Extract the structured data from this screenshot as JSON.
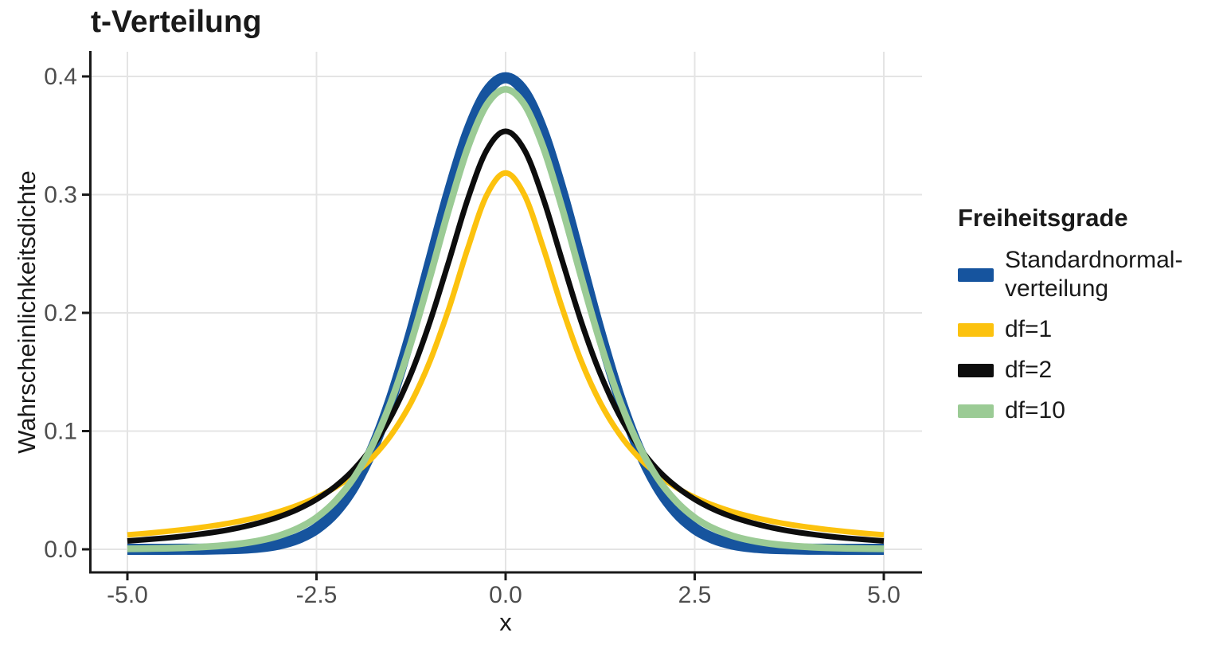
{
  "colors": {
    "background": "#ffffff",
    "gridline": "#e4e4e4",
    "axis_line": "#1a1a1a",
    "tick_label": "#4d4d4d",
    "axis_title": "#1a1a1a",
    "standardnormal_blue": "#16549e",
    "df1_yellow": "#fcc20e",
    "df2_black": "#0d0d0d",
    "df10_green": "#9bcb95"
  },
  "chart_data": {
    "type": "line",
    "title": "t-Verteilung",
    "xlabel": "x",
    "ylabel": "Wahrscheinlichkeitsdichte",
    "legend_title": "Freiheitsgrade",
    "legend_position": "right",
    "grid": true,
    "xlim": [
      -5,
      5
    ],
    "ylim": [
      0,
      0.4
    ],
    "x_ticks": {
      "values": [
        -5,
        -2.5,
        0,
        2.5,
        5
      ],
      "labels": [
        "-5.0",
        "-2.5",
        "0.0",
        "2.5",
        "5.0"
      ]
    },
    "y_ticks": {
      "values": [
        0,
        0.1,
        0.2,
        0.3,
        0.4
      ],
      "labels": [
        "0.0",
        "0.1",
        "0.2",
        "0.3",
        "0.4"
      ]
    },
    "x": [
      -5,
      -4.75,
      -4.5,
      -4.25,
      -4,
      -3.75,
      -3.5,
      -3.25,
      -3,
      -2.75,
      -2.5,
      -2.25,
      -2,
      -1.75,
      -1.5,
      -1.25,
      -1,
      -0.75,
      -0.5,
      -0.25,
      0,
      0.25,
      0.5,
      0.75,
      1,
      1.25,
      1.5,
      1.75,
      2,
      2.25,
      2.5,
      2.75,
      3,
      3.25,
      3.5,
      3.75,
      4,
      4.25,
      4.5,
      4.75,
      5
    ],
    "series": [
      {
        "name": "Standardnormalverteilung",
        "label_lines": [
          "Standardnormal-",
          "verteilung"
        ],
        "color": "#16549e",
        "line_width": 14,
        "peak": 0.3989,
        "values": [
          0.0,
          0.0,
          0.0,
          0.0001,
          0.0001,
          0.0004,
          0.0009,
          0.002,
          0.0044,
          0.0091,
          0.0175,
          0.0317,
          0.054,
          0.0863,
          0.1295,
          0.1826,
          0.242,
          0.3011,
          0.3521,
          0.3867,
          0.3989,
          0.3867,
          0.3521,
          0.3011,
          0.242,
          0.1826,
          0.1295,
          0.0863,
          0.054,
          0.0317,
          0.0175,
          0.0091,
          0.0044,
          0.002,
          0.0009,
          0.0004,
          0.0001,
          0.0001,
          0.0,
          0.0,
          0.0
        ]
      },
      {
        "name": "df=1",
        "label_lines": [
          "df=1"
        ],
        "color": "#fcc20e",
        "line_width": 7,
        "peak": 0.3183,
        "values": [
          0.0122,
          0.0135,
          0.015,
          0.0167,
          0.0187,
          0.0211,
          0.024,
          0.0275,
          0.0318,
          0.0372,
          0.0439,
          0.0525,
          0.0637,
          0.0784,
          0.0979,
          0.1242,
          0.1592,
          0.2037,
          0.2546,
          0.2996,
          0.3183,
          0.2996,
          0.2546,
          0.2037,
          0.1592,
          0.1242,
          0.0979,
          0.0784,
          0.0637,
          0.0525,
          0.0439,
          0.0372,
          0.0318,
          0.0275,
          0.024,
          0.0211,
          0.0187,
          0.0167,
          0.015,
          0.0135,
          0.0122
        ]
      },
      {
        "name": "df=2",
        "label_lines": [
          "df=2"
        ],
        "color": "#0d0d0d",
        "line_width": 7,
        "peak": 0.3536,
        "values": [
          0.0071,
          0.0082,
          0.0095,
          0.0111,
          0.0131,
          0.0155,
          0.0186,
          0.0225,
          0.0274,
          0.0338,
          0.0422,
          0.0533,
          0.068,
          0.0878,
          0.1141,
          0.1487,
          0.1925,
          0.2438,
          0.2963,
          0.3376,
          0.3536,
          0.3376,
          0.2963,
          0.2438,
          0.1925,
          0.1487,
          0.1141,
          0.0878,
          0.068,
          0.0533,
          0.0422,
          0.0338,
          0.0274,
          0.0225,
          0.0186,
          0.0155,
          0.0131,
          0.0111,
          0.0095,
          0.0082,
          0.0071
        ]
      },
      {
        "name": "df=10",
        "label_lines": [
          "df=10"
        ],
        "color": "#9bcb95",
        "line_width": 8.5,
        "peak": 0.3891,
        "values": [
          0.0004,
          0.0006,
          0.0009,
          0.0013,
          0.002,
          0.0031,
          0.0048,
          0.0074,
          0.0114,
          0.0176,
          0.0268,
          0.0409,
          0.0611,
          0.0895,
          0.1274,
          0.1751,
          0.2304,
          0.288,
          0.3397,
          0.376,
          0.3891,
          0.376,
          0.3397,
          0.288,
          0.2304,
          0.1751,
          0.1274,
          0.0895,
          0.0611,
          0.0409,
          0.0268,
          0.0176,
          0.0114,
          0.0074,
          0.0048,
          0.0031,
          0.002,
          0.0013,
          0.0009,
          0.0006,
          0.0004
        ]
      }
    ]
  }
}
